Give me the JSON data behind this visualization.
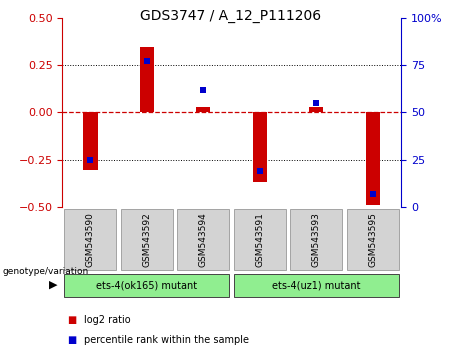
{
  "title": "GDS3747 / A_12_P111206",
  "samples": [
    "GSM543590",
    "GSM543592",
    "GSM543594",
    "GSM543591",
    "GSM543593",
    "GSM543595"
  ],
  "log2_ratio": [
    -0.305,
    0.345,
    0.03,
    -0.37,
    0.03,
    -0.49
  ],
  "percentile_rank": [
    25,
    77,
    62,
    19,
    55,
    7
  ],
  "ylim_left": [
    -0.5,
    0.5
  ],
  "ylim_right": [
    0,
    100
  ],
  "yticks_left": [
    -0.5,
    -0.25,
    0,
    0.25,
    0.5
  ],
  "yticks_right": [
    0,
    25,
    50,
    75,
    100
  ],
  "bar_color": "#CC0000",
  "dot_color": "#0000CC",
  "zero_line_color": "#CC0000",
  "dot_line_color": "#000000",
  "groups": [
    {
      "label": "ets-4(ok165) mutant",
      "color": "#90EE90",
      "start": 0,
      "end": 3
    },
    {
      "label": "ets-4(uz1) mutant",
      "color": "#90EE90",
      "start": 3,
      "end": 6
    }
  ],
  "legend_items": [
    {
      "label": "log2 ratio",
      "color": "#CC0000"
    },
    {
      "label": "percentile rank within the sample",
      "color": "#0000CC"
    }
  ],
  "genotype_label": "genotype/variation",
  "label_bg": "#C8C8C8",
  "title_fontsize": 10,
  "axis_fontsize": 8,
  "label_fontsize": 6.5,
  "group_fontsize": 7,
  "legend_fontsize": 7,
  "bar_width": 0.25
}
